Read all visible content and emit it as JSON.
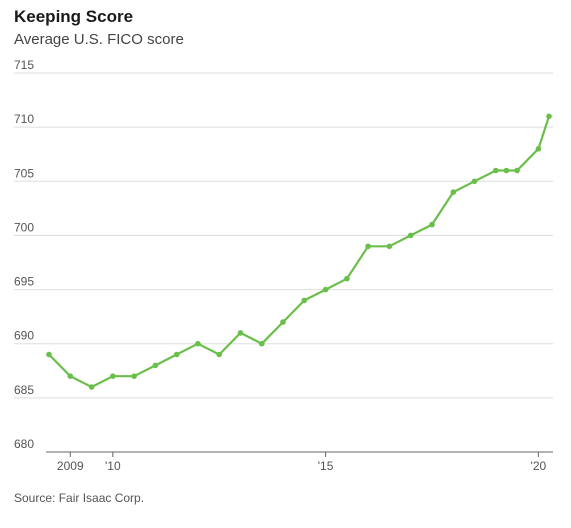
{
  "chart_data": {
    "type": "line",
    "title": "Keeping Score",
    "subtitle": "Average U.S. FICO score",
    "source": "Source: Fair Isaac Corp.",
    "color": "#6abf4b",
    "ylim": [
      680,
      715
    ],
    "y_ticks": [
      "715",
      "710",
      "705",
      "700",
      "695",
      "690",
      "685",
      "680"
    ],
    "x_ticks": [
      {
        "label": "2009",
        "x": 2009.0
      },
      {
        "label": "'10",
        "x": 2010.0
      },
      {
        "label": "'15",
        "x": 2015.0
      },
      {
        "label": "'20",
        "x": 2020.0
      }
    ],
    "x": [
      2008.5,
      2009.0,
      2009.5,
      2010.0,
      2010.5,
      2011.0,
      2011.5,
      2012.0,
      2012.5,
      2013.0,
      2013.5,
      2014.0,
      2014.5,
      2015.0,
      2015.5,
      2016.0,
      2016.5,
      2017.0,
      2017.5,
      2018.0,
      2018.5,
      2019.0,
      2019.25,
      2019.5,
      2020.0,
      2020.25
    ],
    "values": [
      689,
      687,
      686,
      687,
      687,
      688,
      689,
      690,
      689,
      691,
      690,
      692,
      694,
      695,
      696,
      699,
      699,
      700,
      701,
      704,
      705,
      706,
      706,
      706,
      708,
      711
    ]
  }
}
